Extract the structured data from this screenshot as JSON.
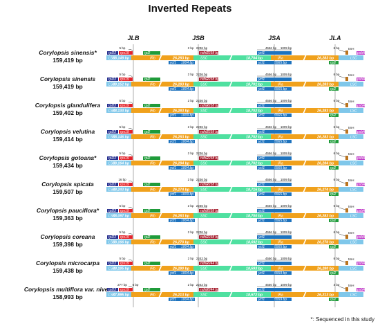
{
  "title": "Inverted Repeats",
  "footnote": "*: Sequenced in this study",
  "junctions": [
    "JLB",
    "JSB",
    "JSA",
    "JLA"
  ],
  "region_labels": {
    "lsc": "LSC",
    "irb": "IRb",
    "ssc": "SSC",
    "ira": "IRa"
  },
  "genes": {
    "rpl22": "rpl22",
    "rps19": "rps19",
    "rpl2": "rpl2",
    "ndhF": "ndhF",
    "ycf1": "ycf1",
    "trnH": "trnH",
    "psbA": "psbA"
  },
  "species": [
    {
      "name": "Corylopsis sinensis*",
      "size": "159,419 bp",
      "lsc": "88,149 bp",
      "irb": "26,283 bp",
      "ssc": "18,704 bp",
      "ira": "26,283 bp",
      "top_left": "5 bp",
      "ssc_left": "2 bp",
      "ssc_left_b": "2236 bp",
      "ndhf_len": "2238 bp",
      "ycf1_left": "1004 bp",
      "ycf1_top": "4556 bp",
      "ycf1_top_b": "1009 bp",
      "ira_ycf1": "5565 bp",
      "right_top": "6 bp"
    },
    {
      "name": "Corylopsis sinensis",
      "size": "159,419 bp",
      "lsc": "88,152 bp",
      "irb": "26,283 bp",
      "ssc": "18,701 bp",
      "ira": "26,283 bp",
      "top_left": "5 bp",
      "ssc_left": "2 bp",
      "ssc_left_b": "2236 bp",
      "ndhf_len": "2238 bp",
      "ycf1_left": "1004 bp",
      "ycf1_top": "4556 bp",
      "ycf1_top_b": "1009 bp",
      "ira_ycf1": "5565 bp",
      "right_top": "6 bp"
    },
    {
      "name": "Corylopsis glandulifera",
      "size": "159,402 bp",
      "lsc": "88,134 bp",
      "irb": "26,283 bp",
      "ssc": "18,702 bp",
      "ira": "26,283 bp",
      "top_left": "5 bp",
      "ssc_left": "2 bp",
      "ssc_left_b": "2236 bp",
      "ndhf_len": "2238 bp",
      "ycf1_left": "1009 bp",
      "ycf1_top": "4556 bp",
      "ycf1_top_b": "1009 bp",
      "ira_ycf1": "5565 bp",
      "right_top": "6 bp"
    },
    {
      "name": "Corylopsis velutina",
      "size": "159,414 bp",
      "lsc": "88,146 bp",
      "irb": "26,283 bp",
      "ssc": "18,702 bp",
      "ira": "26,283 bp",
      "top_left": "5 bp",
      "ssc_left": "2 bp",
      "ssc_left_b": "2236 bp",
      "ndhf_len": "2238 bp",
      "ycf1_left": "1004 bp",
      "ycf1_top": "4556 bp",
      "ycf1_top_b": "1009 bp",
      "ira_ycf1": "5565 bp",
      "right_top": "6 bp"
    },
    {
      "name": "Corylopsis gotoana*",
      "size": "159,434 bp",
      "lsc": "88,164 bp",
      "irb": "26,284 bp",
      "ssc": "18,702 bp",
      "ira": "26,284 bp",
      "top_left": "5 bp",
      "ssc_left": "2 bp",
      "ssc_left_b": "2236 bp",
      "ndhf_len": "2238 bp",
      "ycf1_left": "1004 bp",
      "ycf1_top": "4556 bp",
      "ycf1_top_b": "1009 bp",
      "ira_ycf1": "5565 bp",
      "right_top": "6 bp"
    },
    {
      "name": "Corylopsis spicata",
      "size": "159,507 bp",
      "lsc": "88,243 bp",
      "irb": "26,274 bp",
      "ssc": "18,716 bp",
      "ira": "26,274 bp",
      "top_left": "16 bp",
      "ssc_left": "2 bp",
      "ssc_left_b": "2236 bp",
      "ndhf_len": "2238 bp",
      "ycf1_left": "1009 bp",
      "ycf1_top": "4556 bp",
      "ycf1_top_b": "1009 bp",
      "ira_ycf1": "5565 bp",
      "right_top": "6 bp"
    },
    {
      "name": "Corylopsis pauciflora*",
      "size": "159,363 bp",
      "lsc": "88,097 bp",
      "irb": "26,283 bp",
      "ssc": "18,700 bp",
      "ira": "26,283 bp",
      "top_left": "5 bp",
      "ssc_left": "2 bp",
      "ssc_left_b": "2236 bp",
      "ndhf_len": "2238 bp",
      "ycf1_left": "1004 bp",
      "ycf1_top": "4556 bp",
      "ycf1_top_b": "1009 bp",
      "ira_ycf1": "5565 bp",
      "right_top": "6 bp"
    },
    {
      "name": "Corylopsis coreana",
      "size": "159,398 bp",
      "lsc": "88,166 bp",
      "irb": "26,270 bp",
      "ssc": "18,692 bp",
      "ira": "26,270 bp",
      "top_left": "5 bp",
      "ssc_left": "2 bp",
      "ssc_left_b": "2236 bp",
      "ndhf_len": "2238 bp",
      "ycf1_left": "1004 bp",
      "ycf1_top": "4556 bp",
      "ycf1_top_b": "1009 bp",
      "ira_ycf1": "5565 bp",
      "right_top": "6 bp"
    },
    {
      "name": "Corylopsis microcarpa",
      "size": "159,438 bp",
      "lsc": "88,185 bp",
      "irb": "26,280 bp",
      "ssc": "18,693 bp",
      "ira": "26,280 bp",
      "top_left": "5 bp",
      "ssc_left": "2 bp",
      "ssc_left_b": "2242 bp",
      "ndhf_len": "2244 bp",
      "ycf1_left": "1004 bp",
      "ycf1_top": "4550 bp",
      "ycf1_top_b": "1009 bp",
      "ira_ycf1": "5559 bp",
      "right_top": "6 bp"
    },
    {
      "name": "Corylopsis multiflora var. nivea",
      "size": "158,993 bp",
      "lsc": "87,895 bp",
      "irb": "26,213 bp",
      "ssc": "18,672 bp",
      "ira": "26,213 bp",
      "top_left": "277 bp",
      "top_left_b": "6 bp",
      "ssc_left": "2 bp",
      "ssc_left_b": "2242 bp",
      "ndhf_len": "2244 bp",
      "ycf1_left": "1004 bp",
      "ycf1_top": "4550 bp",
      "ycf1_top_b": "1009 bp",
      "ira_ycf1": "5559 bp",
      "right_top": "4 bp"
    }
  ],
  "colors": {
    "lsc": "#7fc7ea",
    "ir": "#f0a11c",
    "ssc": "#4fe0a0",
    "ycf1": "#1e73be",
    "rpl22": "#27308f",
    "rps19": "#e3232a",
    "rpl2": "#1f9b3a",
    "ndhF": "#a51d2d",
    "trnH": "#b9741f",
    "psbA": "#c03cc8",
    "junction": "#9a9a9a"
  }
}
